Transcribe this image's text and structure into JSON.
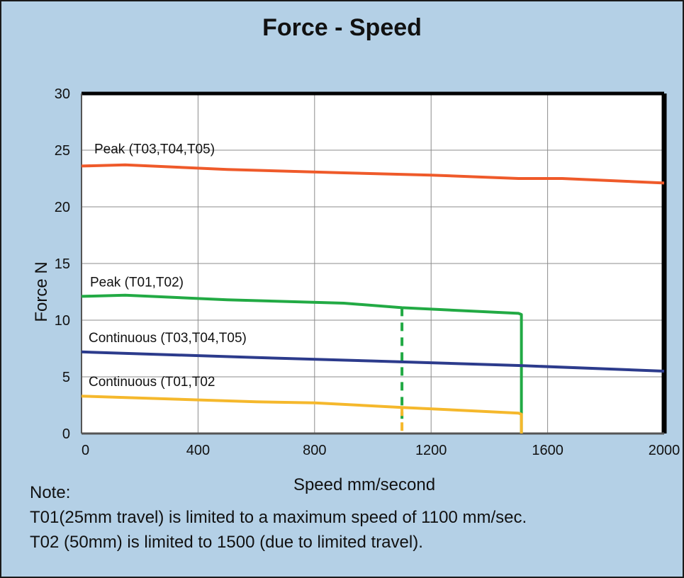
{
  "chart_data": {
    "type": "line",
    "title": "Force - Speed",
    "xlabel": "Speed mm/second",
    "ylabel": "Force N",
    "xlim": [
      0,
      2000
    ],
    "ylim": [
      0,
      30
    ],
    "x_ticks": [
      "0",
      "400",
      "800",
      "1200",
      "1600",
      "2000"
    ],
    "y_ticks": [
      "0",
      "5",
      "10",
      "15",
      "20",
      "25",
      "30"
    ],
    "grid": true,
    "series": [
      {
        "name": "Peak (T03,T04,T05)",
        "color": "#ef5a2a",
        "x": [
          0,
          150,
          500,
          900,
          1200,
          1500,
          1650,
          2000
        ],
        "y": [
          23.6,
          23.7,
          23.3,
          23.0,
          22.8,
          22.5,
          22.5,
          22.1
        ]
      },
      {
        "name": "Peak (T01,T02)",
        "color": "#22aa44",
        "x": [
          0,
          150,
          500,
          900,
          1100,
          1500,
          1510,
          1510
        ],
        "y": [
          12.1,
          12.2,
          11.8,
          11.5,
          11.1,
          10.6,
          10.5,
          0
        ]
      },
      {
        "name": "Continuous (T03,T04,T05)",
        "color": "#2c3b8c",
        "x": [
          0,
          600,
          1000,
          1500,
          2000
        ],
        "y": [
          7.2,
          6.7,
          6.4,
          6.0,
          5.5
        ]
      },
      {
        "name": "Continuous (T01,T02",
        "color": "#f5b82c",
        "x": [
          0,
          600,
          800,
          1100,
          1500,
          1510,
          1510
        ],
        "y": [
          3.3,
          2.8,
          2.7,
          2.3,
          1.8,
          1.7,
          0
        ]
      }
    ],
    "limit_markers": [
      {
        "series": "Peak (T01,T02)",
        "x": 1100,
        "y_from": 11.1,
        "y_to": 1.3,
        "color": "#22aa44",
        "style": "dashed"
      },
      {
        "series": "Continuous (T01,T02",
        "x": 1100,
        "y_from": 2.3,
        "y_to": 0,
        "color": "#f5b82c",
        "style": "dashed"
      }
    ]
  },
  "note": {
    "heading": "Note:",
    "lines": [
      "T01(25mm travel) is limited to a maximum speed of 1100 mm/sec.",
      "T02 (50mm) is limited to 1500 (due to limited travel)."
    ]
  }
}
